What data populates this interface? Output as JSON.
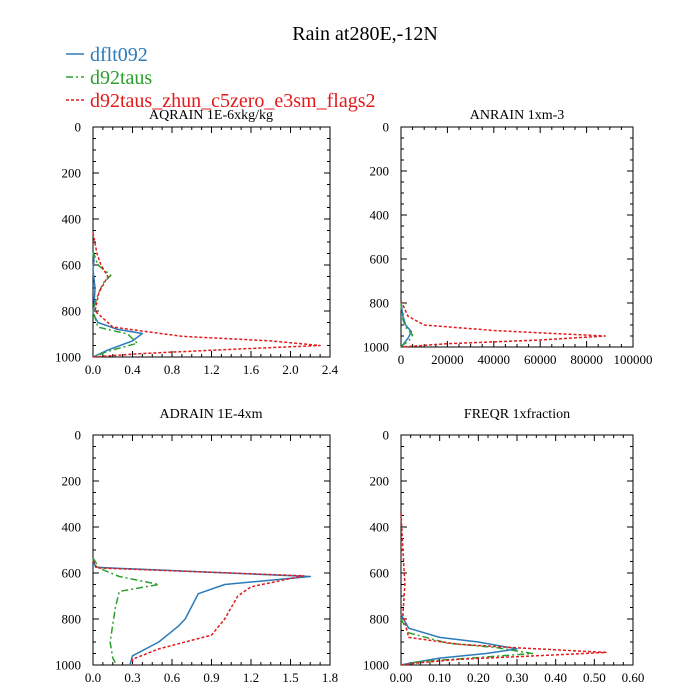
{
  "title": "Rain at280E,-12N",
  "colors": {
    "dflt092": "#2b7bba",
    "d92taus": "#2ca02c",
    "d92taus_zhun_c5zero_e3sm_flags2": "#e31a1c"
  },
  "legend": [
    {
      "name": "dflt092",
      "color": "#2b7bba",
      "dash": "solid"
    },
    {
      "name": "d92taus",
      "color": "#2ca02c",
      "dash": "dashdot"
    },
    {
      "name": "d92taus_zhun_c5zero_e3sm_flags2",
      "color": "#e31a1c",
      "dash": "dotted"
    }
  ],
  "chart_data": [
    {
      "type": "line",
      "title": "AQRAIN  1E-6xkg/kg",
      "xlim": [
        0,
        2.4
      ],
      "xticks": [
        0.0,
        0.4,
        0.8,
        1.2,
        1.6,
        2.0,
        2.4
      ],
      "xticklabels": [
        "0.0",
        "0.4",
        "0.8",
        "1.2",
        "1.6",
        "2.0",
        "2.4"
      ],
      "ylim": [
        0,
        1000
      ],
      "yticks": [
        0,
        200,
        400,
        600,
        800,
        1000
      ],
      "yticklabels": [
        "0",
        "200",
        "400",
        "600",
        "800",
        "1000"
      ],
      "series": [
        {
          "name": "dflt092",
          "points": [
            [
              0,
              540
            ],
            [
              0.01,
              580
            ],
            [
              0,
              620
            ],
            [
              0.02,
              700
            ],
            [
              0.01,
              780
            ],
            [
              0,
              810
            ],
            [
              0.05,
              850
            ],
            [
              0.25,
              880
            ],
            [
              0.5,
              898
            ],
            [
              0.4,
              930
            ],
            [
              0.15,
              970
            ],
            [
              0,
              1000
            ]
          ]
        },
        {
          "name": "d92taus",
          "points": [
            [
              0,
              540
            ],
            [
              0.05,
              600
            ],
            [
              0.18,
              645
            ],
            [
              0.1,
              680
            ],
            [
              0.04,
              740
            ],
            [
              0,
              800
            ],
            [
              0.05,
              870
            ],
            [
              0.35,
              900
            ],
            [
              0.45,
              940
            ],
            [
              0.15,
              975
            ],
            [
              0,
              1000
            ]
          ]
        },
        {
          "name": "d92taus_zhun_c5zero_e3sm_flags2",
          "points": [
            [
              0,
              460
            ],
            [
              0.04,
              550
            ],
            [
              0.08,
              600
            ],
            [
              0.15,
              650
            ],
            [
              0.06,
              720
            ],
            [
              0.02,
              800
            ],
            [
              0.2,
              870
            ],
            [
              0.9,
              910
            ],
            [
              1.8,
              930
            ],
            [
              2.3,
              950
            ],
            [
              1.5,
              965
            ],
            [
              0.5,
              985
            ],
            [
              0,
              1000
            ]
          ]
        }
      ]
    },
    {
      "type": "line",
      "title": "ANRAIN  1xm-3",
      "xlim": [
        0,
        100000
      ],
      "xticks": [
        0,
        20000,
        40000,
        60000,
        80000,
        100000
      ],
      "xticklabels": [
        "0",
        "20000",
        "40000",
        "60000",
        "80000",
        "100000"
      ],
      "ylim": [
        0,
        1000
      ],
      "yticks": [
        0,
        200,
        400,
        600,
        800,
        1000
      ],
      "yticklabels": [
        "0",
        "200",
        "400",
        "600",
        "800",
        "1000"
      ],
      "series": [
        {
          "name": "dflt092",
          "points": [
            [
              0,
              790
            ],
            [
              600,
              850
            ],
            [
              2000,
              900
            ],
            [
              4500,
              930
            ],
            [
              3000,
              960
            ],
            [
              800,
              990
            ],
            [
              0,
              1000
            ]
          ]
        },
        {
          "name": "d92taus",
          "points": [
            [
              0,
              800
            ],
            [
              400,
              860
            ],
            [
              2000,
              910
            ],
            [
              5000,
              945
            ],
            [
              3500,
              970
            ],
            [
              1000,
              990
            ],
            [
              0,
              1000
            ]
          ]
        },
        {
          "name": "d92taus_zhun_c5zero_e3sm_flags2",
          "points": [
            [
              0,
              790
            ],
            [
              3000,
              860
            ],
            [
              10000,
              900
            ],
            [
              40000,
              925
            ],
            [
              88000,
              950
            ],
            [
              60000,
              968
            ],
            [
              20000,
              985
            ],
            [
              0,
              1000
            ]
          ]
        }
      ]
    },
    {
      "type": "line",
      "title": "ADRAIN  1E-4xm",
      "xlim": [
        0,
        1.8
      ],
      "xticks": [
        0.0,
        0.3,
        0.6,
        0.9,
        1.2,
        1.5,
        1.8
      ],
      "xticklabels": [
        "0.0",
        "0.3",
        "0.6",
        "0.9",
        "1.2",
        "1.5",
        "1.8"
      ],
      "ylim": [
        0,
        1000
      ],
      "yticks": [
        0,
        200,
        400,
        600,
        800,
        1000
      ],
      "yticklabels": [
        "0",
        "200",
        "400",
        "600",
        "800",
        "1000"
      ],
      "series": [
        {
          "name": "dflt092",
          "points": [
            [
              0,
              540
            ],
            [
              0.02,
              575
            ],
            [
              1.65,
              615
            ],
            [
              1.0,
              650
            ],
            [
              0.8,
              690
            ],
            [
              0.7,
              800
            ],
            [
              0.65,
              830
            ],
            [
              0.5,
              900
            ],
            [
              0.3,
              960
            ],
            [
              0.28,
              1000
            ]
          ]
        },
        {
          "name": "d92taus",
          "points": [
            [
              0,
              535
            ],
            [
              0.05,
              580
            ],
            [
              0.2,
              615
            ],
            [
              0.5,
              650
            ],
            [
              0.3,
              670
            ],
            [
              0.2,
              680
            ],
            [
              0.17,
              750
            ],
            [
              0.13,
              900
            ],
            [
              0.15,
              970
            ],
            [
              0.18,
              1000
            ]
          ]
        },
        {
          "name": "d92taus_zhun_c5zero_e3sm_flags2",
          "points": [
            [
              0,
              545
            ],
            [
              0.03,
              578
            ],
            [
              1.6,
              612
            ],
            [
              1.2,
              660
            ],
            [
              1.1,
              700
            ],
            [
              1.0,
              800
            ],
            [
              0.9,
              870
            ],
            [
              0.5,
              930
            ],
            [
              0.3,
              975
            ],
            [
              0.3,
              1000
            ]
          ]
        }
      ]
    },
    {
      "type": "line",
      "title": "FREQR  1xfraction",
      "xlim": [
        0,
        0.6
      ],
      "xticks": [
        0.0,
        0.1,
        0.2,
        0.3,
        0.4,
        0.5,
        0.6
      ],
      "xticklabels": [
        "0.00",
        "0.10",
        "0.20",
        "0.30",
        "0.40",
        "0.50",
        "0.60"
      ],
      "ylim": [
        0,
        1000
      ],
      "yticks": [
        0,
        200,
        400,
        600,
        800,
        1000
      ],
      "yticklabels": [
        "0",
        "200",
        "400",
        "600",
        "800",
        "1000"
      ],
      "series": [
        {
          "name": "dflt092",
          "points": [
            [
              0,
              780
            ],
            [
              0.02,
              840
            ],
            [
              0.1,
              880
            ],
            [
              0.2,
              900
            ],
            [
              0.3,
              930
            ],
            [
              0.22,
              950
            ],
            [
              0.1,
              970
            ],
            [
              0.03,
              990
            ],
            [
              0,
              1000
            ]
          ]
        },
        {
          "name": "d92taus",
          "points": [
            [
              0,
              800
            ],
            [
              0.02,
              860
            ],
            [
              0.12,
              905
            ],
            [
              0.25,
              925
            ],
            [
              0.34,
              950
            ],
            [
              0.22,
              965
            ],
            [
              0.05,
              985
            ],
            [
              0,
              1000
            ]
          ]
        },
        {
          "name": "d92taus_zhun_c5zero_e3sm_flags2",
          "points": [
            [
              0,
              340
            ],
            [
              0.005,
              500
            ],
            [
              0.01,
              650
            ],
            [
              0.005,
              780
            ],
            [
              0.02,
              880
            ],
            [
              0.15,
              910
            ],
            [
              0.3,
              925
            ],
            [
              0.53,
              945
            ],
            [
              0.35,
              960
            ],
            [
              0.15,
              975
            ],
            [
              0.05,
              990
            ],
            [
              0,
              1000
            ]
          ]
        }
      ]
    }
  ]
}
